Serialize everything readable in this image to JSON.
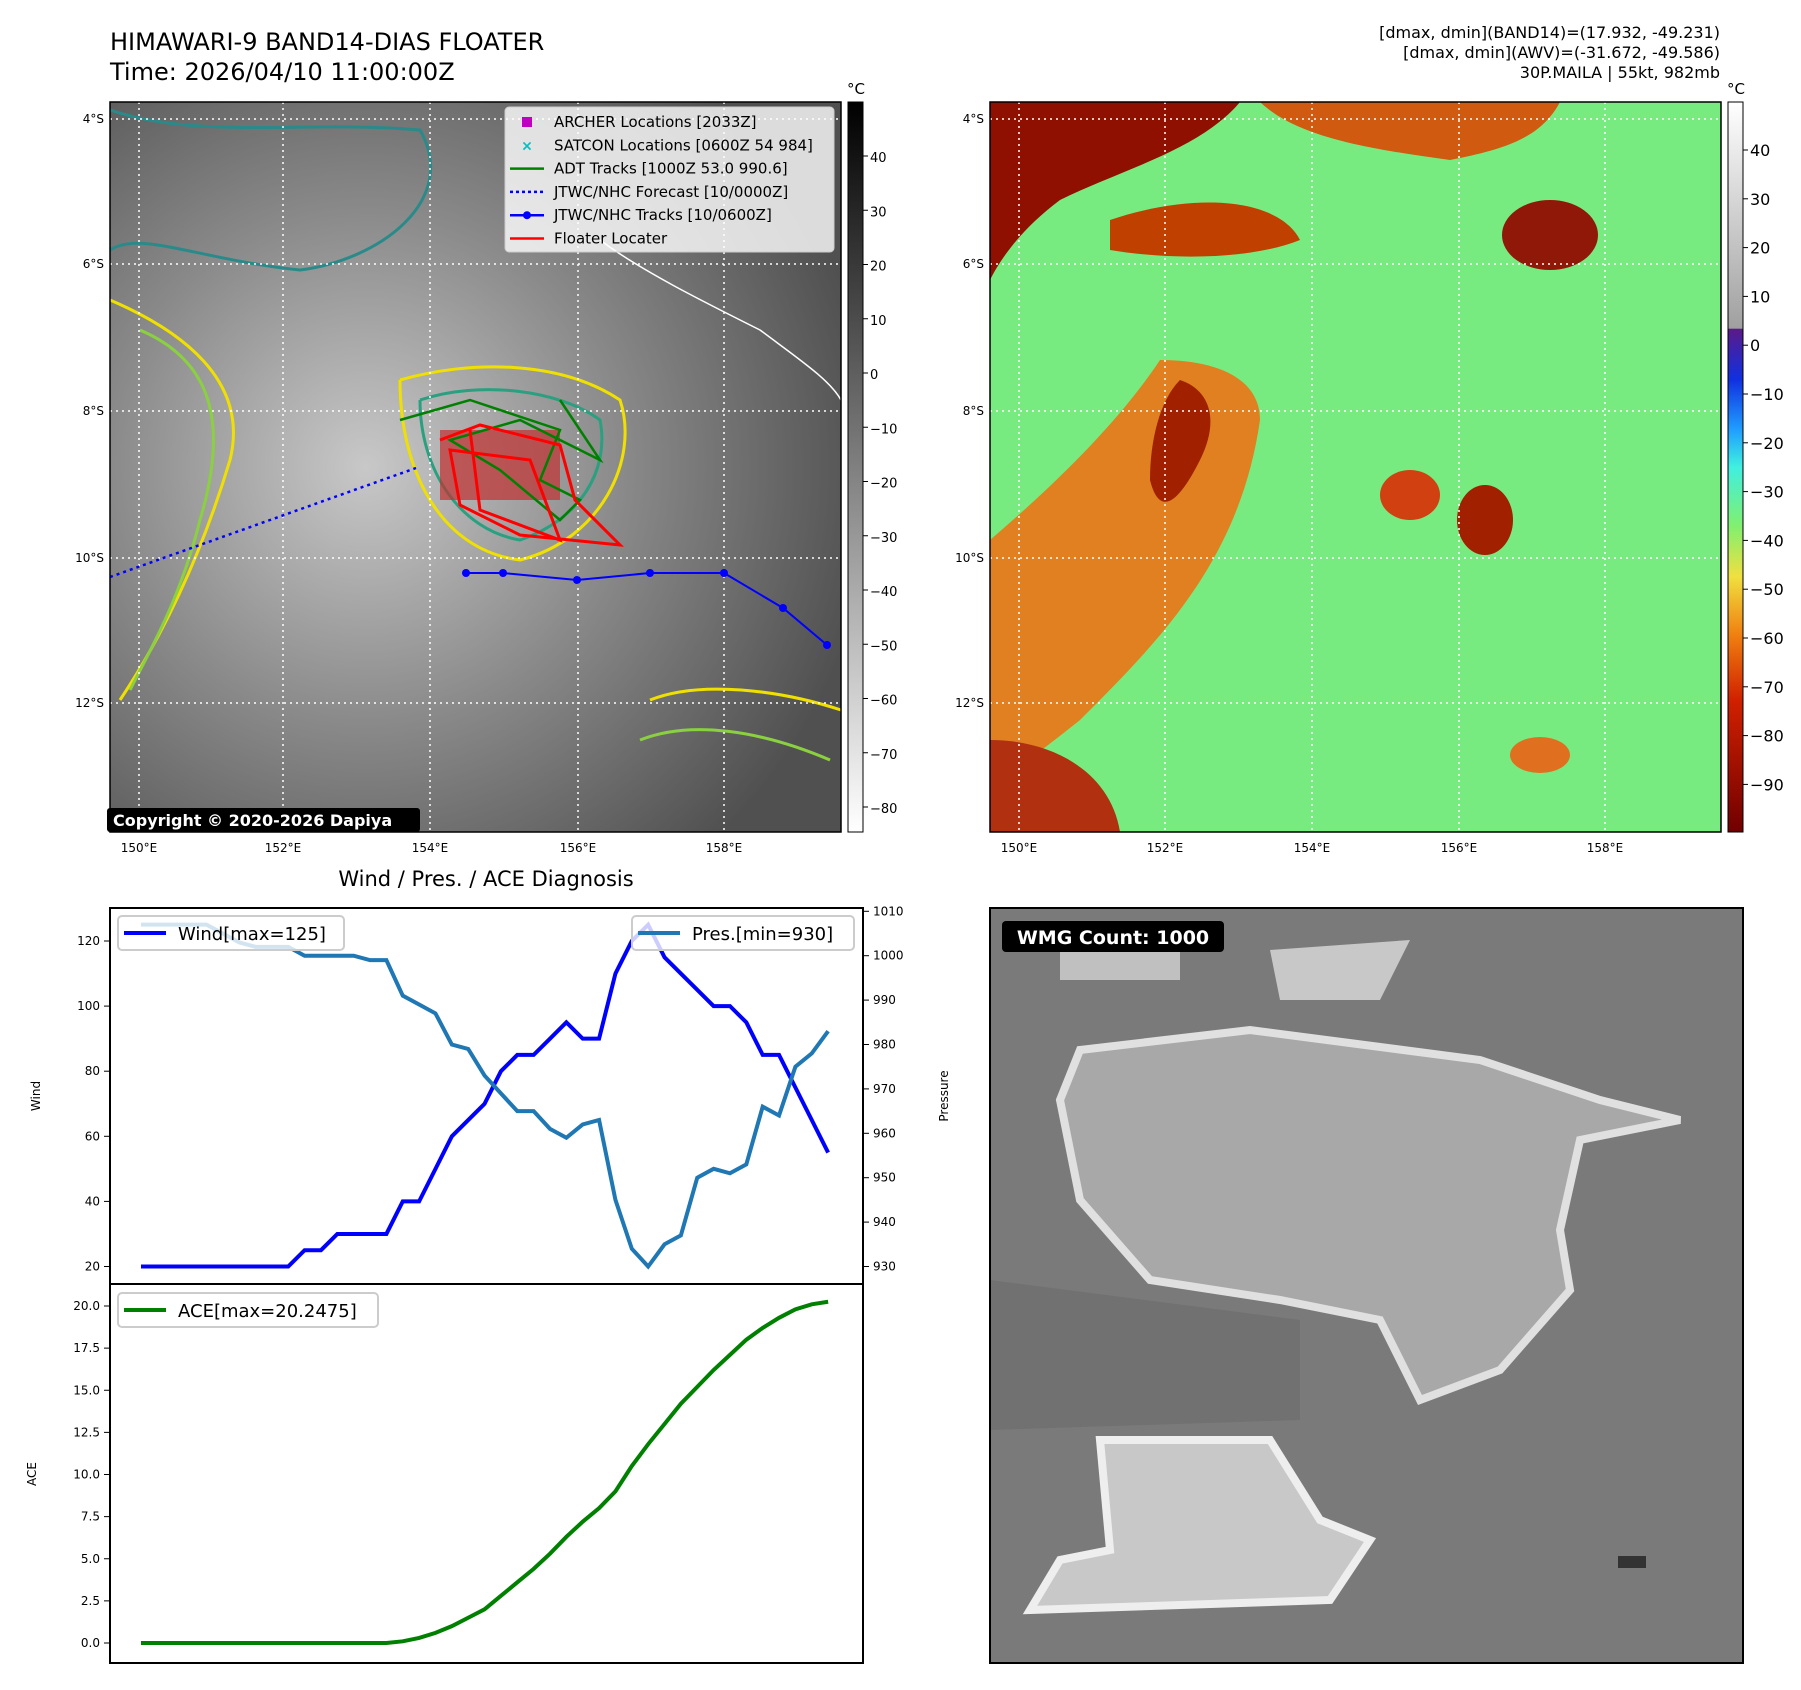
{
  "header": {
    "title": "HIMAWARI-9 BAND14-DIAS FLOATER",
    "time": "Time: 2026/04/10 11:00:00Z",
    "stats_band14": "[dmax, dmin](BAND14)=(17.932, -49.231)",
    "stats_awv": "[dmax, dmin](AWV)=(-31.672, -49.586)",
    "storm": "30P.MAILA | 55kt, 982mb"
  },
  "map": {
    "lat_labels": [
      "4°S",
      "6°S",
      "8°S",
      "10°S",
      "12°S"
    ],
    "lon_labels": [
      "150°E",
      "152°E",
      "154°E",
      "156°E",
      "158°E"
    ],
    "copyright": "Copyright © 2020-2026 Dapiya",
    "unit": "°C",
    "colorbar1_ticks": [
      "40",
      "30",
      "20",
      "10",
      "0",
      "−10",
      "−20",
      "−30",
      "−40",
      "−50",
      "−60",
      "−70",
      "−80"
    ],
    "colorbar2_ticks": [
      "40",
      "30",
      "20",
      "10",
      "0",
      "−10",
      "−20",
      "−30",
      "−40",
      "−50",
      "−60",
      "−70",
      "−80",
      "−90"
    ],
    "legend": [
      {
        "label": "ARCHER Locations [2033Z]",
        "color": "#c000c0",
        "marker": "square"
      },
      {
        "label": "SATCON Locations [0600Z 54 984]",
        "color": "#00c0c0",
        "marker": "x"
      },
      {
        "label": "ADT Tracks [1000Z 53.0 990.6]",
        "color": "#008000",
        "marker": "line"
      },
      {
        "label": "JTWC/NHC Forecast [10/0000Z]",
        "color": "#0000ff",
        "marker": "dotted"
      },
      {
        "label": "JTWC/NHC Tracks [10/0600Z]",
        "color": "#0000ff",
        "marker": "line-dot"
      },
      {
        "label": "Floater Locater",
        "color": "#ff0000",
        "marker": "line"
      }
    ]
  },
  "wmg": {
    "label": "WMG Count: 1000"
  },
  "chart_data": [
    {
      "type": "line",
      "title": "Wind / Pres. / ACE Diagnosis",
      "ylabel": "Wind",
      "y2label": "Pressure",
      "ylim": [
        18,
        130
      ],
      "y2lim": [
        928,
        1011
      ],
      "yticks": [
        "20",
        "40",
        "60",
        "80",
        "100",
        "120"
      ],
      "y2ticks": [
        "930",
        "940",
        "950",
        "960",
        "970",
        "980",
        "990",
        "1000",
        "1010"
      ],
      "series": [
        {
          "name": "Wind[max=125]",
          "color": "#0000ff",
          "axis": "left",
          "values": [
            20,
            20,
            20,
            20,
            20,
            20,
            20,
            20,
            20,
            20,
            25,
            25,
            30,
            30,
            30,
            30,
            40,
            40,
            50,
            60,
            65,
            70,
            80,
            85,
            85,
            90,
            95,
            90,
            90,
            110,
            120,
            125,
            115,
            110,
            105,
            100,
            100,
            95,
            85,
            85,
            75,
            65,
            55
          ]
        },
        {
          "name": "Pres.[min=930]",
          "color": "#1f77b4",
          "axis": "right",
          "values": [
            1007,
            1007,
            1007,
            1007,
            1007,
            1005,
            1003,
            1002,
            1002,
            1002,
            1000,
            1000,
            1000,
            1000,
            999,
            999,
            991,
            989,
            987,
            980,
            979,
            973,
            969,
            965,
            965,
            961,
            959,
            962,
            963,
            945,
            934,
            930,
            935,
            937,
            950,
            952,
            951,
            953,
            966,
            964,
            975,
            978,
            983
          ]
        }
      ]
    },
    {
      "type": "line",
      "ylabel": "ACE",
      "ylim": [
        -0.8,
        21
      ],
      "yticks": [
        "0.0",
        "2.5",
        "5.0",
        "7.5",
        "10.0",
        "12.5",
        "15.0",
        "17.5",
        "20.0"
      ],
      "series": [
        {
          "name": "ACE[max=20.2475]",
          "color": "#008000",
          "values": [
            0,
            0,
            0,
            0,
            0,
            0,
            0,
            0,
            0,
            0,
            0,
            0,
            0,
            0,
            0,
            0,
            0.1,
            0.3,
            0.6,
            1.0,
            1.5,
            2.0,
            2.8,
            3.6,
            4.4,
            5.3,
            6.3,
            7.2,
            8.0,
            9.0,
            10.5,
            11.8,
            13.0,
            14.2,
            15.2,
            16.2,
            17.1,
            18.0,
            18.7,
            19.3,
            19.8,
            20.1,
            20.25
          ]
        }
      ]
    }
  ]
}
